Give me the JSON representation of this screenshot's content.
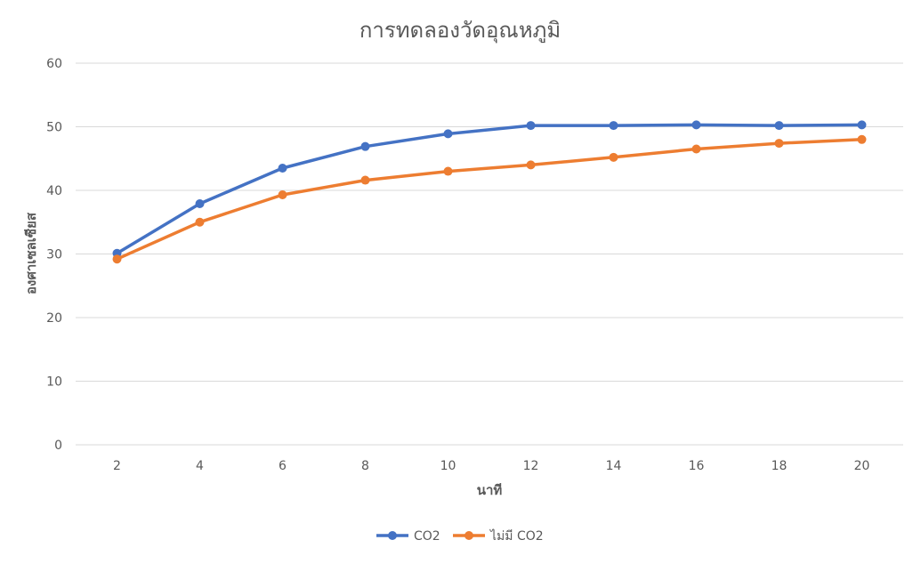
{
  "chart_data": {
    "type": "line",
    "title": "การทดลองวัดอุณหภูมิ",
    "xlabel": "นาที",
    "ylabel": "องศาเซลเซียส",
    "x": [
      "2",
      "4",
      "6",
      "8",
      "10",
      "12",
      "14",
      "16",
      "18",
      "20"
    ],
    "ylim": [
      0,
      60
    ],
    "yticks": [
      "0",
      "10",
      "20",
      "30",
      "40",
      "50",
      "60"
    ],
    "grid": true,
    "legend": "bottom",
    "series": [
      {
        "name": "CO2",
        "color": "#4472c4",
        "values": [
          30.1,
          37.9,
          43.5,
          46.9,
          48.9,
          50.2,
          50.2,
          50.3,
          50.2,
          50.3
        ]
      },
      {
        "name": "ไม่มี CO2",
        "color": "#ed7d31",
        "values": [
          29.2,
          35.0,
          39.3,
          41.6,
          43.0,
          44.0,
          45.2,
          46.5,
          47.4,
          48.0
        ]
      }
    ]
  }
}
